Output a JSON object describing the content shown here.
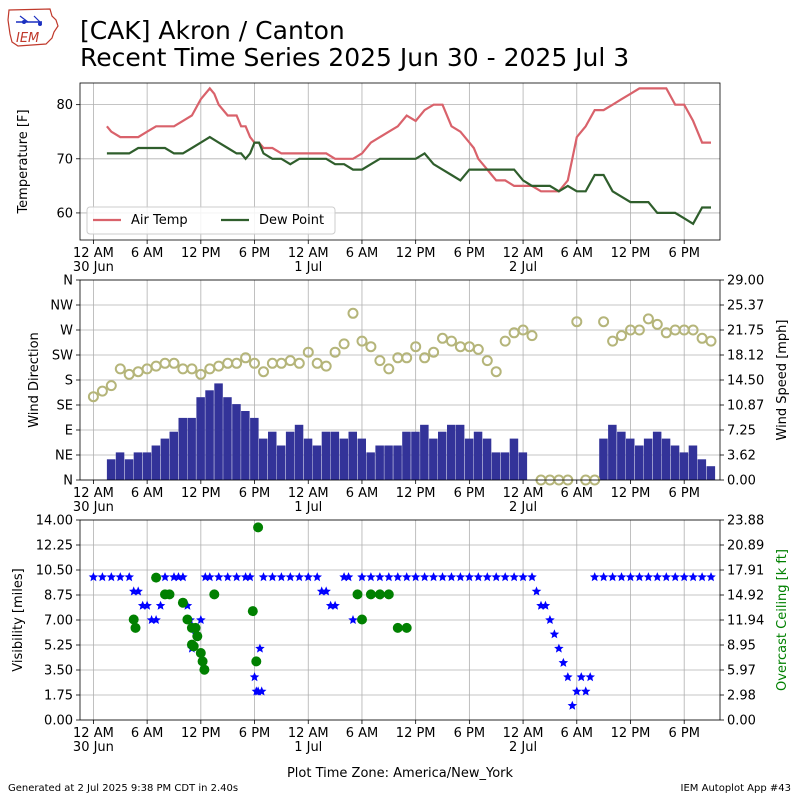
{
  "header": {
    "title_line1": "[CAK] Akron / Canton",
    "title_line2": "Recent Time Series 2025 Jun 30 - 2025 Jul 3",
    "logo_text": "IEM"
  },
  "footer": {
    "generated": "Generated at 2 Jul 2025 9:38 PM CDT in 2.40s",
    "app": "IEM Autoplot App #43"
  },
  "colors": {
    "air_temp": "#d9626b",
    "dew_point": "#2f5e2c",
    "wind_speed": "#333399",
    "wind_dir": "#b5b57a",
    "visibility": "#0000ff",
    "ceiling": "#008000",
    "grid": "#b0b0b0"
  },
  "chart_data": [
    {
      "type": "line",
      "ylabel": "Temperature [F]",
      "ylim": [
        55,
        84
      ],
      "yticks": [
        60,
        70,
        80
      ],
      "x_unit": "hours since 30 Jun 12 AM",
      "xlim": [
        -1.5,
        70
      ],
      "x_ticks": [
        0,
        6,
        12,
        18,
        24,
        30,
        36,
        42,
        48,
        54,
        60,
        66
      ],
      "x_tick_labels": [
        "12 AM",
        "6 AM",
        "12 PM",
        "6 PM",
        "12 AM",
        "6 AM",
        "12 PM",
        "6 PM",
        "12 AM",
        "6 AM",
        "12 PM",
        "6 PM"
      ],
      "x_tick_sublabels": [
        "30 Jun",
        "",
        "",
        "",
        "1 Jul",
        "",
        "",
        "",
        "2 Jul",
        "",
        "",
        ""
      ],
      "grid": true,
      "legend_position": "lower-left",
      "series": [
        {
          "name": "Air Temp",
          "x": [
            1.5,
            2,
            3,
            4,
            5,
            6,
            7,
            8,
            9,
            10,
            11,
            12,
            13,
            13.5,
            14,
            15,
            16,
            16.5,
            17,
            17.5,
            18,
            18.2,
            18.5,
            19,
            20,
            21,
            22,
            23,
            24,
            25,
            26,
            27,
            28,
            28.5,
            29,
            30,
            31,
            32,
            33,
            34,
            35,
            36,
            37,
            38,
            39,
            40,
            41,
            42,
            42.5,
            43,
            44,
            44.5,
            45,
            46,
            47,
            48,
            49,
            50,
            51,
            51.5,
            52,
            53,
            53.5,
            54,
            55,
            56,
            57,
            58,
            59,
            60,
            61,
            62,
            63,
            64,
            65,
            66,
            67,
            68,
            69
          ],
          "values": [
            76,
            75,
            74,
            74,
            74,
            75,
            76,
            76,
            76,
            77,
            78,
            81,
            83,
            82,
            80,
            78,
            78,
            76,
            76,
            74,
            73,
            73,
            73,
            72,
            72,
            71,
            71,
            71,
            71,
            71,
            71,
            70,
            70,
            70,
            70,
            71,
            73,
            74,
            75,
            76,
            78,
            77,
            79,
            80,
            80,
            76,
            75,
            73,
            72,
            70,
            68,
            67,
            66,
            66,
            65,
            65,
            65,
            64,
            64,
            64,
            64,
            66,
            70,
            74,
            76,
            79,
            79,
            80,
            81,
            82,
            83,
            83,
            83,
            83,
            80,
            80,
            77,
            73,
            73
          ]
        },
        {
          "name": "Dew Point",
          "x": [
            1.5,
            3,
            4,
            5,
            6,
            7,
            8,
            9,
            10,
            11,
            12,
            13,
            14,
            15,
            16,
            16.5,
            17,
            17.5,
            18,
            18.5,
            19,
            20,
            21,
            22,
            23,
            24,
            25,
            26,
            27,
            28,
            29,
            30,
            31,
            32,
            33,
            34,
            35,
            36,
            37,
            38,
            39,
            40,
            41,
            42,
            43,
            44,
            45,
            46,
            47,
            48,
            49,
            50,
            51,
            52,
            53,
            54,
            55,
            56,
            57,
            58,
            59,
            60,
            61,
            62,
            63,
            64,
            65,
            66,
            67,
            68,
            69
          ],
          "values": [
            71,
            71,
            71,
            72,
            72,
            72,
            72,
            71,
            71,
            72,
            73,
            74,
            73,
            72,
            71,
            71,
            70,
            71,
            73,
            73,
            71,
            70,
            70,
            69,
            70,
            70,
            70,
            70,
            69,
            69,
            68,
            68,
            69,
            70,
            70,
            70,
            70,
            70,
            71,
            69,
            68,
            67,
            66,
            68,
            68,
            68,
            68,
            68,
            68,
            66,
            65,
            65,
            65,
            64,
            65,
            64,
            64,
            67,
            67,
            64,
            63,
            62,
            62,
            62,
            60,
            60,
            60,
            59,
            58,
            61,
            61
          ]
        }
      ]
    },
    {
      "type": "bar",
      "ylabel": "Wind Direction",
      "y2label": "Wind Speed [mph]",
      "ylim": [
        0,
        360
      ],
      "y_ticks": [
        0,
        45,
        90,
        135,
        180,
        225,
        270,
        315,
        360
      ],
      "y_tick_labels": [
        "N",
        "NE",
        "E",
        "SE",
        "S",
        "SW",
        "W",
        "NW",
        "N"
      ],
      "y2lim": [
        0,
        29
      ],
      "y2_tick_labels": [
        "0.00",
        "3.62",
        "7.25",
        "10.87",
        "14.50",
        "18.12",
        "21.75",
        "25.37",
        "29.00"
      ],
      "x_unit": "hours since 30 Jun 12 AM",
      "xlim": [
        -1.5,
        70
      ],
      "grid": true,
      "series": [
        {
          "name": "Wind Speed [mph]",
          "x": [
            0,
            1,
            2,
            3,
            4,
            5,
            6,
            7,
            8,
            9,
            10,
            11,
            12,
            13,
            14,
            15,
            16,
            17,
            18,
            19,
            20,
            21,
            22,
            23,
            24,
            25,
            26,
            27,
            28,
            29,
            30,
            31,
            32,
            33,
            34,
            35,
            36,
            37,
            38,
            39,
            40,
            41,
            42,
            43,
            44,
            45,
            46,
            47,
            48,
            49,
            50,
            51,
            52,
            53,
            54,
            55,
            56,
            57,
            58,
            59,
            60,
            61,
            62,
            63,
            64,
            65,
            66,
            67,
            68,
            69
          ],
          "values": [
            0,
            0,
            3,
            4,
            3,
            4,
            4,
            5,
            6,
            7,
            9,
            9,
            12,
            13,
            14,
            12,
            11,
            10,
            9,
            6,
            7,
            5,
            7,
            8,
            6,
            5,
            7,
            7,
            6,
            7,
            6,
            4,
            5,
            5,
            5,
            7,
            7,
            8,
            6,
            7,
            8,
            8,
            6,
            7,
            6,
            4,
            4,
            6,
            4,
            0,
            0,
            0,
            0,
            0,
            0,
            0,
            0,
            6,
            8,
            7,
            6,
            5,
            6,
            7,
            6,
            5,
            4,
            5,
            3,
            2
          ]
        },
        {
          "name": "Wind Direction",
          "x": [
            0,
            1,
            2,
            3,
            4,
            5,
            6,
            7,
            8,
            9,
            10,
            11,
            12,
            13,
            14,
            15,
            16,
            17,
            18,
            19,
            20,
            21,
            22,
            23,
            24,
            25,
            26,
            27,
            28,
            29,
            30,
            31,
            32,
            33,
            34,
            35,
            36,
            37,
            38,
            39,
            40,
            41,
            42,
            43,
            44,
            45,
            46,
            47,
            48,
            49,
            50,
            51,
            52,
            53,
            54,
            55,
            56,
            57,
            58,
            59,
            60,
            61,
            62,
            63,
            64,
            65,
            66,
            67,
            68,
            69
          ],
          "values": [
            150,
            160,
            170,
            200,
            190,
            195,
            200,
            205,
            210,
            210,
            200,
            200,
            190,
            200,
            205,
            210,
            210,
            220,
            210,
            195,
            210,
            210,
            215,
            210,
            230,
            210,
            205,
            230,
            245,
            300,
            250,
            240,
            215,
            200,
            220,
            220,
            240,
            220,
            230,
            255,
            250,
            240,
            240,
            235,
            215,
            195,
            250,
            265,
            270,
            260,
            0,
            0,
            0,
            0,
            285,
            0,
            0,
            285,
            250,
            260,
            270,
            270,
            290,
            280,
            265,
            270,
            270,
            270,
            255,
            250
          ]
        }
      ]
    },
    {
      "type": "scatter",
      "ylabel": "Visibility [miles]",
      "y2label": "Overcast Ceiling [k ft]",
      "ylim": [
        0,
        14
      ],
      "y_tick_labels": [
        "0.00",
        "1.75",
        "3.50",
        "5.25",
        "7.00",
        "8.75",
        "10.50",
        "12.25",
        "14.00"
      ],
      "y2lim": [
        0,
        23.88
      ],
      "y2_tick_labels": [
        "0.00",
        "2.98",
        "5.97",
        "8.95",
        "11.94",
        "14.92",
        "17.91",
        "20.89",
        "23.88"
      ],
      "xlabel": "Plot Time Zone: America/New_York",
      "x_unit": "hours since 30 Jun 12 AM",
      "xlim": [
        -1.5,
        70
      ],
      "grid": true,
      "series": [
        {
          "name": "Visibility [miles]",
          "x": [
            0,
            1,
            2,
            3,
            4,
            4.5,
            5,
            5.5,
            6,
            6.5,
            7,
            7.5,
            8,
            9,
            9.5,
            10,
            10.5,
            10.8,
            11,
            11.5,
            12,
            12.5,
            13,
            14,
            15,
            16,
            17,
            17.5,
            18,
            18.2,
            18.4,
            18.6,
            18.8,
            19,
            20,
            21,
            22,
            23,
            24,
            25,
            25.5,
            26,
            26.5,
            27,
            28,
            28.5,
            29,
            30,
            31,
            32,
            33,
            34,
            35,
            36,
            37,
            38,
            39,
            40,
            41,
            42,
            43,
            44,
            45,
            46,
            47,
            48,
            49,
            49.5,
            50,
            50.5,
            51,
            51.5,
            52,
            52.5,
            53,
            53.5,
            54,
            54.5,
            55,
            55.5,
            56,
            57,
            58,
            59,
            60,
            61,
            62,
            63,
            64,
            65,
            66,
            67,
            68,
            69
          ],
          "values": [
            10,
            10,
            10,
            10,
            10,
            9,
            9,
            8,
            8,
            7,
            7,
            8,
            10,
            10,
            10,
            10,
            8,
            7,
            5,
            6,
            7,
            10,
            10,
            10,
            10,
            10,
            10,
            10,
            3,
            2,
            2,
            5,
            2,
            10,
            10,
            10,
            10,
            10,
            10,
            10,
            9,
            9,
            8,
            8,
            10,
            10,
            7,
            10,
            10,
            10,
            10,
            10,
            10,
            10,
            10,
            10,
            10,
            10,
            10,
            10,
            10,
            10,
            10,
            10,
            10,
            10,
            10,
            9,
            8,
            8,
            7,
            6,
            5,
            4,
            3,
            1,
            2,
            3,
            2,
            3,
            10,
            10,
            10,
            10,
            10,
            10,
            10,
            10,
            10,
            10,
            10,
            10,
            10,
            10
          ]
        },
        {
          "name": "Overcast Ceiling [k ft]",
          "x": [
            4.5,
            4.7,
            7,
            8,
            8.5,
            10,
            10.5,
            11,
            11,
            11.2,
            11.4,
            11.6,
            12,
            12.2,
            12.4,
            13.5,
            17.8,
            18.2,
            18.4,
            29.5,
            30,
            31,
            32,
            33,
            34,
            35
          ],
          "values": [
            12,
            11,
            17,
            15,
            15,
            14,
            12,
            11,
            9,
            8.8,
            11,
            10,
            8,
            7,
            6,
            15,
            13,
            7,
            23,
            15,
            12,
            15,
            15,
            15,
            11,
            11
          ]
        }
      ]
    }
  ]
}
